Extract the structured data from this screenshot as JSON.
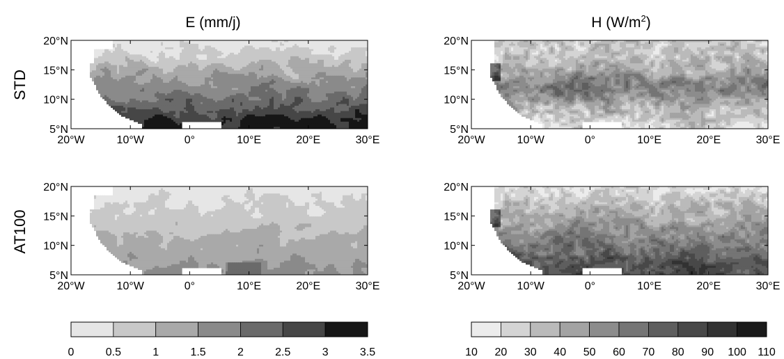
{
  "chart_data": [
    {
      "type": "heatmap",
      "panel": "E-STD",
      "title": "E (mm/j)",
      "row_label": "STD",
      "x_ticks": [
        "20°W",
        "10°W",
        "0°",
        "10°E",
        "20°E",
        "30°E"
      ],
      "y_ticks": [
        "5°N",
        "10°N",
        "15°N",
        "20°N"
      ],
      "xlim": [
        -20,
        30
      ],
      "ylim": [
        5,
        20
      ],
      "colorbar": [
        "0",
        "0.5",
        "1",
        "1.5",
        "2",
        "2.5",
        "3",
        "3.5"
      ]
    },
    {
      "type": "heatmap",
      "panel": "H-STD",
      "title": "H (W/m",
      "title_sup": "2",
      "title_end": ")",
      "row_label": "STD",
      "x_ticks": [
        "20°W",
        "10°W",
        "0°",
        "10°E",
        "20°E",
        "30°E"
      ],
      "y_ticks": [
        "5°N",
        "10°N",
        "15°N",
        "20°N"
      ],
      "xlim": [
        -20,
        30
      ],
      "ylim": [
        5,
        20
      ],
      "colorbar": [
        "10",
        "20",
        "30",
        "40",
        "50",
        "60",
        "70",
        "80",
        "90",
        "100",
        "110"
      ]
    },
    {
      "type": "heatmap",
      "panel": "E-AT100",
      "row_label": "AT100",
      "x_ticks": [
        "20°W",
        "10°W",
        "0°",
        "10°E",
        "20°E",
        "30°E"
      ],
      "y_ticks": [
        "5°N",
        "10°N",
        "15°N",
        "20°N"
      ],
      "xlim": [
        -20,
        30
      ],
      "ylim": [
        5,
        20
      ]
    },
    {
      "type": "heatmap",
      "panel": "H-AT100",
      "row_label": "AT100",
      "x_ticks": [
        "20°W",
        "10°W",
        "0°",
        "10°E",
        "20°E",
        "30°E"
      ],
      "y_ticks": [
        "5°N",
        "10°N",
        "15°N",
        "20°N"
      ],
      "xlim": [
        -20,
        30
      ],
      "ylim": [
        5,
        20
      ]
    }
  ],
  "colors": {
    "E_scale": [
      "#e6e6e6",
      "#c8c8c8",
      "#a9a9a9",
      "#8a8a8a",
      "#6a6a6a",
      "#464646",
      "#161616"
    ],
    "H_scale": [
      "#ececec",
      "#d4d4d4",
      "#bababa",
      "#a3a3a3",
      "#8c8c8c",
      "#757575",
      "#5e5e5e",
      "#484848",
      "#323232",
      "#1a1a1a"
    ]
  }
}
